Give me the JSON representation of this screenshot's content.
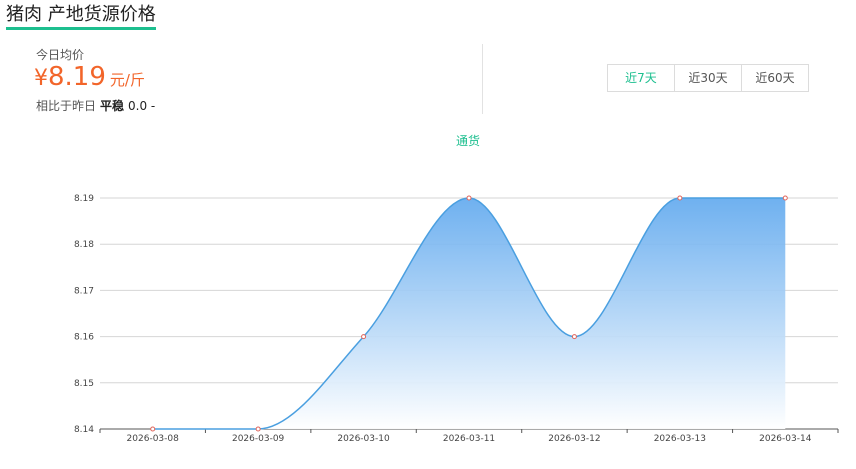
{
  "header": {
    "title": "猪肉 产地货源价格"
  },
  "summary": {
    "today_label": "今日均价",
    "currency": "¥",
    "price": "8.19",
    "unit": "元/斤",
    "compare_label": "相比于昨日",
    "trend": "平稳",
    "delta": "0.0 -"
  },
  "range_tabs": [
    {
      "label": "近7天",
      "active": true
    },
    {
      "label": "近30天",
      "active": false
    },
    {
      "label": "近60天",
      "active": false
    }
  ],
  "colors": {
    "accent": "#1dbf8f",
    "price": "#f2652a",
    "line": "#4a9fe0",
    "point": "#e0645a"
  },
  "chart_data": {
    "type": "area",
    "series": [
      {
        "name": "通货",
        "values": [
          8.14,
          8.14,
          8.16,
          8.19,
          8.16,
          8.19,
          8.19
        ]
      }
    ],
    "categories": [
      "2026-03-08",
      "2026-03-09",
      "2026-03-10",
      "2026-03-11",
      "2026-03-12",
      "2026-03-13",
      "2026-03-14"
    ],
    "ylim": [
      8.14,
      8.19
    ],
    "yticks": [
      "8.14",
      "8.15",
      "8.16",
      "8.17",
      "8.18",
      "8.19"
    ],
    "grid": true,
    "legend": "top-center"
  }
}
